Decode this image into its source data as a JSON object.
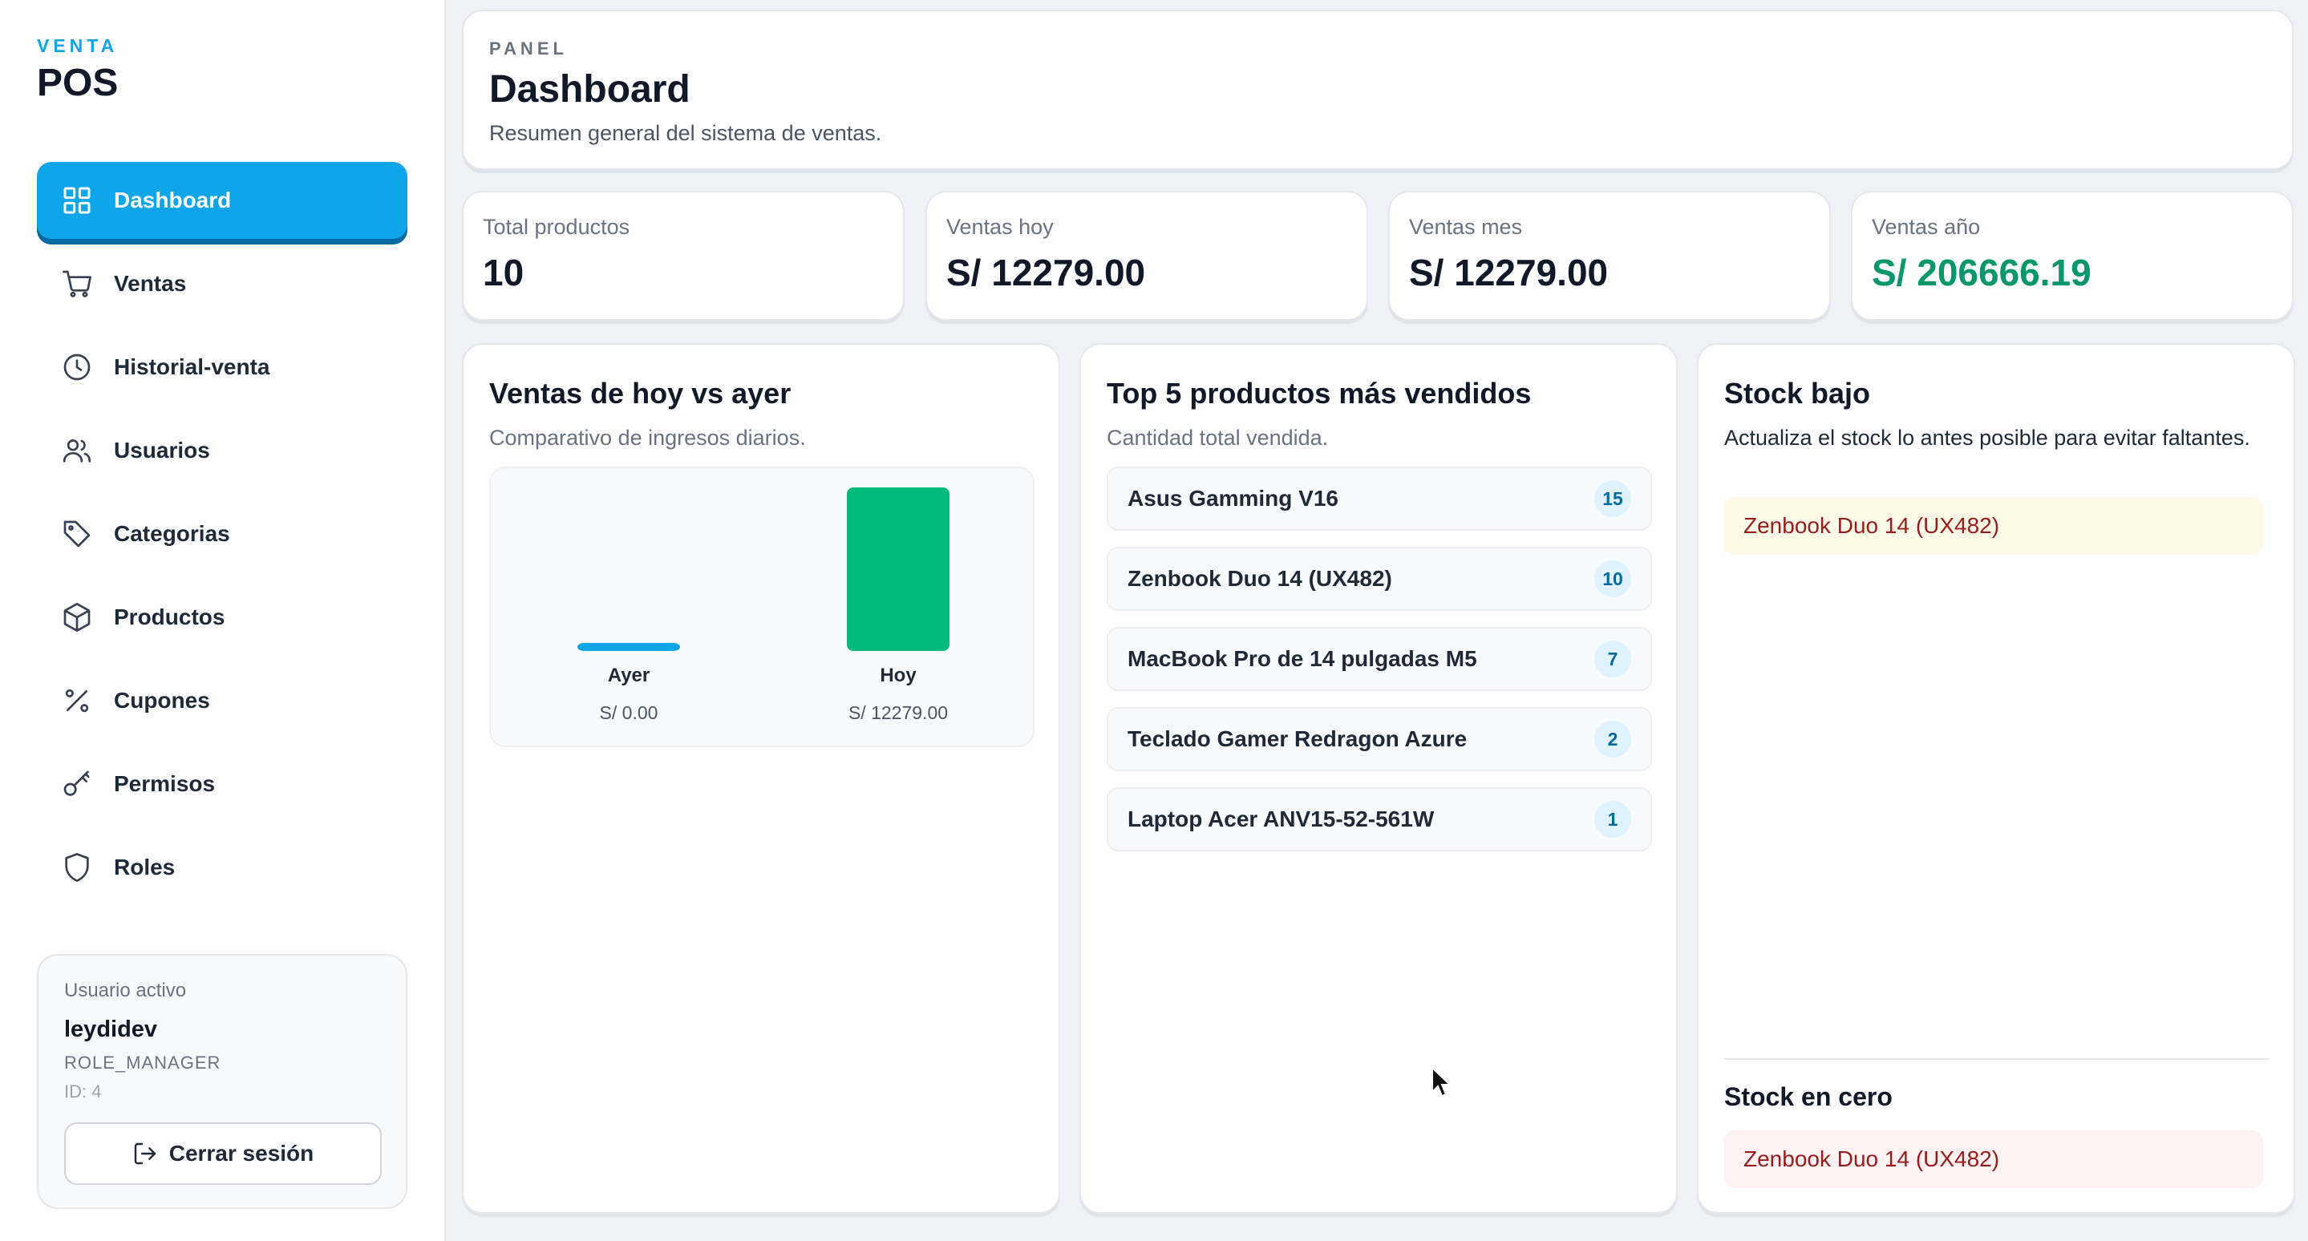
{
  "brand": {
    "kicker": "VENTA",
    "title": "POS"
  },
  "sidebar": {
    "items": [
      {
        "label": "Dashboard",
        "icon": "grid-icon",
        "active": true
      },
      {
        "label": "Ventas",
        "icon": "cart-icon"
      },
      {
        "label": "Historial-venta",
        "icon": "clock-icon"
      },
      {
        "label": "Usuarios",
        "icon": "users-icon"
      },
      {
        "label": "Categorias",
        "icon": "tag-icon"
      },
      {
        "label": "Productos",
        "icon": "box-icon"
      },
      {
        "label": "Cupones",
        "icon": "percent-icon"
      },
      {
        "label": "Permisos",
        "icon": "key-icon"
      },
      {
        "label": "Roles",
        "icon": "shield-icon"
      }
    ]
  },
  "user": {
    "label": "Usuario activo",
    "name": "leydidev",
    "role": "ROLE_MANAGER",
    "id": "ID: 4",
    "logout": "Cerrar sesión"
  },
  "header": {
    "kicker": "PANEL",
    "title": "Dashboard",
    "subtitle": "Resumen general del sistema de ventas."
  },
  "stats": [
    {
      "label": "Total productos",
      "value": "10"
    },
    {
      "label": "Ventas hoy",
      "value": "S/ 12279.00"
    },
    {
      "label": "Ventas mes",
      "value": "S/ 12279.00"
    },
    {
      "label": "Ventas año",
      "value": "S/ 206666.19",
      "color": "#059669"
    }
  ],
  "comparison": {
    "title": "Ventas de hoy vs ayer",
    "subtitle": "Comparativo de ingresos diarios."
  },
  "chart_data": {
    "type": "bar",
    "categories": [
      "Ayer",
      "Hoy"
    ],
    "values": [
      0,
      12279
    ],
    "value_labels": [
      "S/ 0.00",
      "S/ 12279.00"
    ],
    "colors": [
      "#0ea5e9",
      "#00bb7b"
    ]
  },
  "top_products": {
    "title": "Top 5 productos más vendidos",
    "subtitle": "Cantidad total vendida.",
    "items": [
      {
        "name": "Asus Gamming V16",
        "qty": "15"
      },
      {
        "name": "Zenbook Duo 14 (UX482)",
        "qty": "10"
      },
      {
        "name": "MacBook Pro de 14 pulgadas M5",
        "qty": "7"
      },
      {
        "name": "Teclado Gamer Redragon Azure",
        "qty": "2"
      },
      {
        "name": "Laptop Acer ANV15-52-561W",
        "qty": "1"
      }
    ]
  },
  "stock": {
    "low_title": "Stock bajo",
    "low_subtitle": "Actualiza el stock lo antes posible para evitar faltantes.",
    "low_items": [
      "Zenbook Duo 14 (UX482)"
    ],
    "zero_title": "Stock en cero",
    "zero_items": [
      "Zenbook Duo 14 (UX482)"
    ]
  }
}
